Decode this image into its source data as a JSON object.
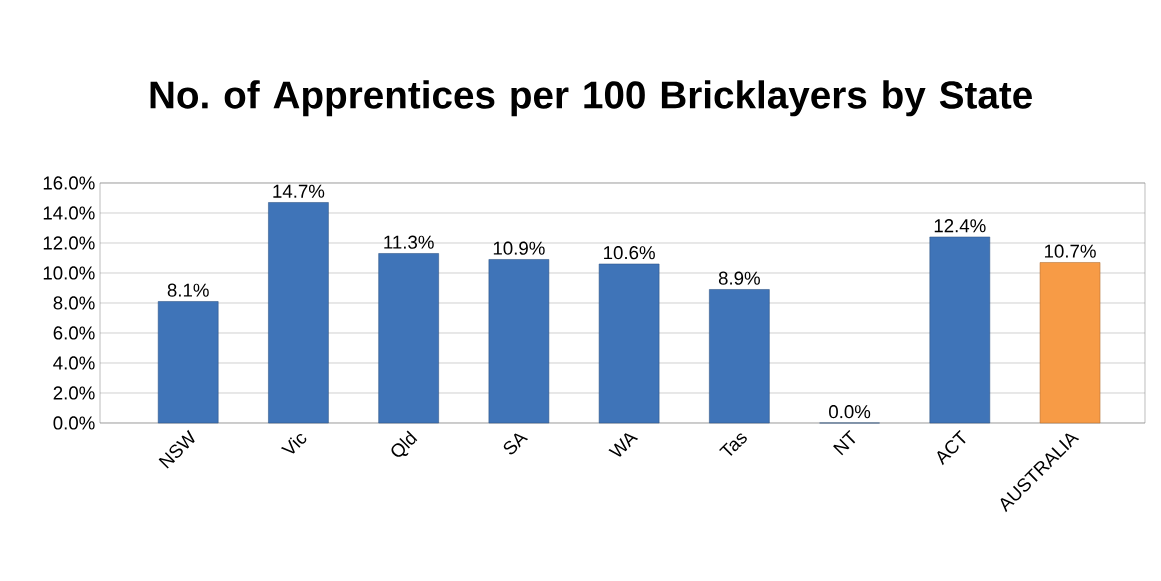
{
  "chart_data": {
    "type": "bar",
    "title": "No. of Apprentices per 100 Bricklayers by State",
    "categories": [
      "NSW",
      "Vic",
      "Qld",
      "SA",
      "WA",
      "Tas",
      "NT",
      "ACT",
      "AUSTRALIA"
    ],
    "values": [
      8.1,
      14.7,
      11.3,
      10.9,
      10.6,
      8.9,
      0.0,
      12.4,
      10.7
    ],
    "colors": [
      "#3f74b8",
      "#3f74b8",
      "#3f74b8",
      "#3f74b8",
      "#3f74b8",
      "#3f74b8",
      "#3f74b8",
      "#3f74b8",
      "#f79b46"
    ],
    "value_labels": [
      "8.1%",
      "14.7%",
      "11.3%",
      "10.9%",
      "10.6%",
      "8.9%",
      "0.0%",
      "12.4%",
      "10.7%"
    ],
    "ylim": [
      0,
      16
    ],
    "yticks": [
      {
        "value": 0,
        "label": "0.0%"
      },
      {
        "value": 2,
        "label": "2.0%"
      },
      {
        "value": 4,
        "label": "4.0%"
      },
      {
        "value": 6,
        "label": "6.0%"
      },
      {
        "value": 8,
        "label": "8.0%"
      },
      {
        "value": 10,
        "label": "10.0%"
      },
      {
        "value": 12,
        "label": "12.0%"
      },
      {
        "value": 14,
        "label": "14.0%"
      },
      {
        "value": 16,
        "label": "16.0%"
      }
    ],
    "grid": "y"
  }
}
